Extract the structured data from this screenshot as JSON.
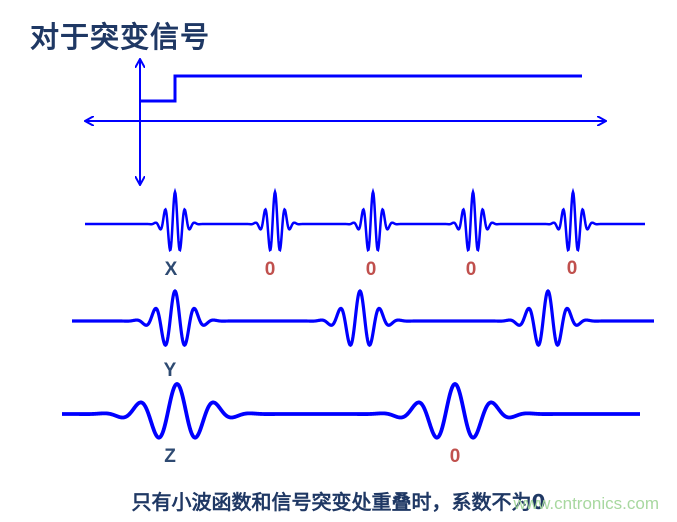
{
  "title": "对于突变信号",
  "caption": "只有小波函数和信号突变处重叠时，系数不为0",
  "watermark": "www.cntronics.com",
  "colors": {
    "wave": "#0000FF",
    "label_match": "#2E4A72",
    "label_zero": "#C0504D",
    "title": "#1F3864"
  },
  "rows": [
    {
      "labels": [
        "X",
        "0",
        "0",
        "0",
        "0"
      ]
    },
    {
      "labels": [
        "Y"
      ]
    },
    {
      "labels": [
        "Z",
        "0"
      ]
    }
  ]
}
